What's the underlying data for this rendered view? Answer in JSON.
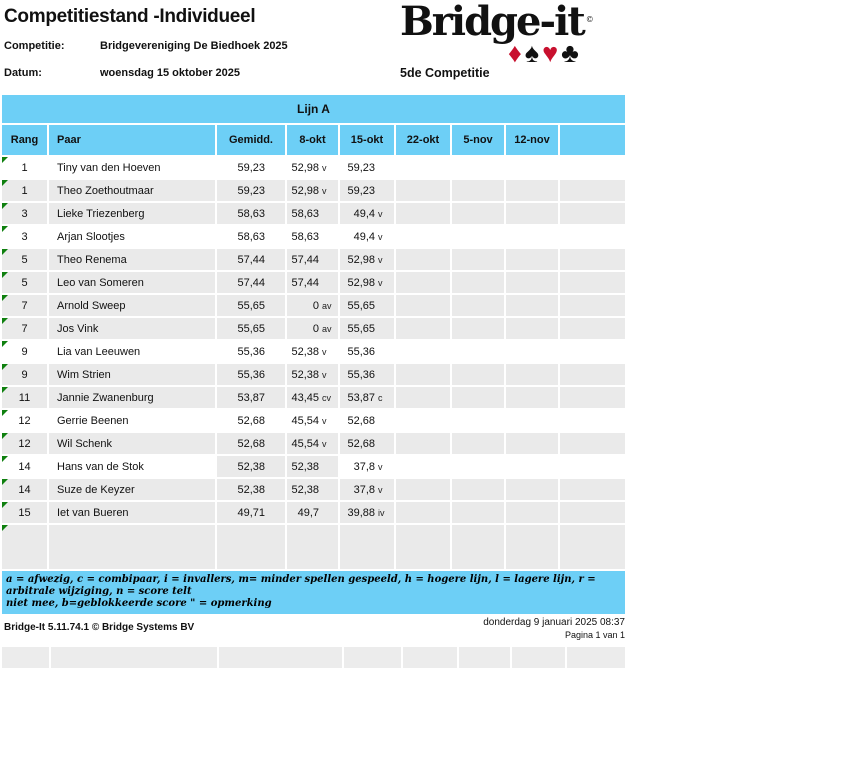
{
  "header": {
    "title": "Competitiestand -Individueel",
    "competitie_label": "Competitie:",
    "competitie_value": "Bridgevereniging De Biedhoek 2025",
    "datum_label": "Datum:",
    "datum_value": "woensdag 15 oktober 2025"
  },
  "logo": {
    "text": "Bridge-it",
    "registered_mark": "©",
    "suits": [
      "♦",
      "♠",
      "♥",
      "♣"
    ],
    "subtitle": "5de Competitie"
  },
  "table": {
    "group_header": "Lijn A",
    "columns": [
      "Rang",
      "Paar",
      "Gemidd.",
      "8-okt",
      "15-okt",
      "22-okt",
      "5-nov",
      "12-nov",
      ""
    ],
    "rows": [
      {
        "rang": "1",
        "paar": "Tiny van den Hoeven",
        "gemidd": "59,23",
        "okt8": "52,98",
        "okt8_code": "v",
        "okt15": "59,23",
        "okt15_code": "",
        "bg": "white"
      },
      {
        "rang": "1",
        "paar": "Theo Zoethoutmaar",
        "gemidd": "59,23",
        "okt8": "52,98",
        "okt8_code": "v",
        "okt15": "59,23",
        "okt15_code": "",
        "bg": "gray"
      },
      {
        "rang": "3",
        "paar": "Lieke Triezenberg",
        "gemidd": "58,63",
        "okt8": "58,63",
        "okt8_code": "",
        "okt15": "49,4",
        "okt15_code": "v",
        "bg": "gray"
      },
      {
        "rang": "3",
        "paar": "Arjan Slootjes",
        "gemidd": "58,63",
        "okt8": "58,63",
        "okt8_code": "",
        "okt15": "49,4",
        "okt15_code": "v",
        "bg": "white"
      },
      {
        "rang": "5",
        "paar": "Theo Renema",
        "gemidd": "57,44",
        "okt8": "57,44",
        "okt8_code": "",
        "okt15": "52,98",
        "okt15_code": "v",
        "bg": "gray"
      },
      {
        "rang": "5",
        "paar": "Leo van Someren",
        "gemidd": "57,44",
        "okt8": "57,44",
        "okt8_code": "",
        "okt15": "52,98",
        "okt15_code": "v",
        "bg": "gray"
      },
      {
        "rang": "7",
        "paar": "Arnold Sweep",
        "gemidd": "55,65",
        "okt8": "0",
        "okt8_code": "av",
        "okt15": "55,65",
        "okt15_code": "",
        "bg": "gray"
      },
      {
        "rang": "7",
        "paar": "Jos Vink",
        "gemidd": "55,65",
        "okt8": "0",
        "okt8_code": "av",
        "okt15": "55,65",
        "okt15_code": "",
        "bg": "gray"
      },
      {
        "rang": "9",
        "paar": "Lia van Leeuwen",
        "gemidd": "55,36",
        "okt8": "52,38",
        "okt8_code": "v",
        "okt15": "55,36",
        "okt15_code": "",
        "bg": "white"
      },
      {
        "rang": "9",
        "paar": "Wim Strien",
        "gemidd": "55,36",
        "okt8": "52,38",
        "okt8_code": "v",
        "okt15": "55,36",
        "okt15_code": "",
        "bg": "gray"
      },
      {
        "rang": "11",
        "paar": "Jannie Zwanenburg",
        "gemidd": "53,87",
        "okt8": "43,45",
        "okt8_code": "cv",
        "okt15": "53,87",
        "okt15_code": "c",
        "bg": "gray"
      },
      {
        "rang": "12",
        "paar": "Gerrie Beenen",
        "gemidd": "52,68",
        "okt8": "45,54",
        "okt8_code": "v",
        "okt15": "52,68",
        "okt15_code": "",
        "bg": "white"
      },
      {
        "rang": "12",
        "paar": "Wil Schenk",
        "gemidd": "52,68",
        "okt8": "45,54",
        "okt8_code": "v",
        "okt15": "52,68",
        "okt15_code": "",
        "bg": "gray"
      },
      {
        "rang": "14",
        "paar": "Hans van de Stok",
        "gemidd": "52,38",
        "okt8": "52,38",
        "okt8_code": "",
        "okt15": "37,8",
        "okt15_code": "v",
        "bg": "mixed"
      },
      {
        "rang": "14",
        "paar": "Suze de Keyzer",
        "gemidd": "52,38",
        "okt8": "52,38",
        "okt8_code": "",
        "okt15": "37,8",
        "okt15_code": "v",
        "bg": "gray"
      },
      {
        "rang": "15",
        "paar": "Iet van Bueren",
        "gemidd": "49,71",
        "okt8": "49,7",
        "okt8_code": "",
        "okt15": "39,88",
        "okt15_code": "iv",
        "bg": "gray"
      }
    ]
  },
  "legend": {
    "line1": "a = afwezig, c = combipaar, i = invallers, m= minder spellen gespeeld, h = hogere lijn, l = lagere lijn, r = arbitrale wijziging, n = score telt",
    "line2": "niet mee, b=geblokkeerde score   \" = opmerking"
  },
  "footer": {
    "left": "Bridge-It 5.11.74.1 © Bridge Systems BV",
    "right_line1": "donderdag 9 januari 2025 08:37",
    "right_line2": "Pagina 1 van 1"
  },
  "colors": {
    "header_blue": "#6dcff6",
    "row_gray": "#eaeaea",
    "marker_green": "#0f800f",
    "suit_red": "#c8102e"
  }
}
